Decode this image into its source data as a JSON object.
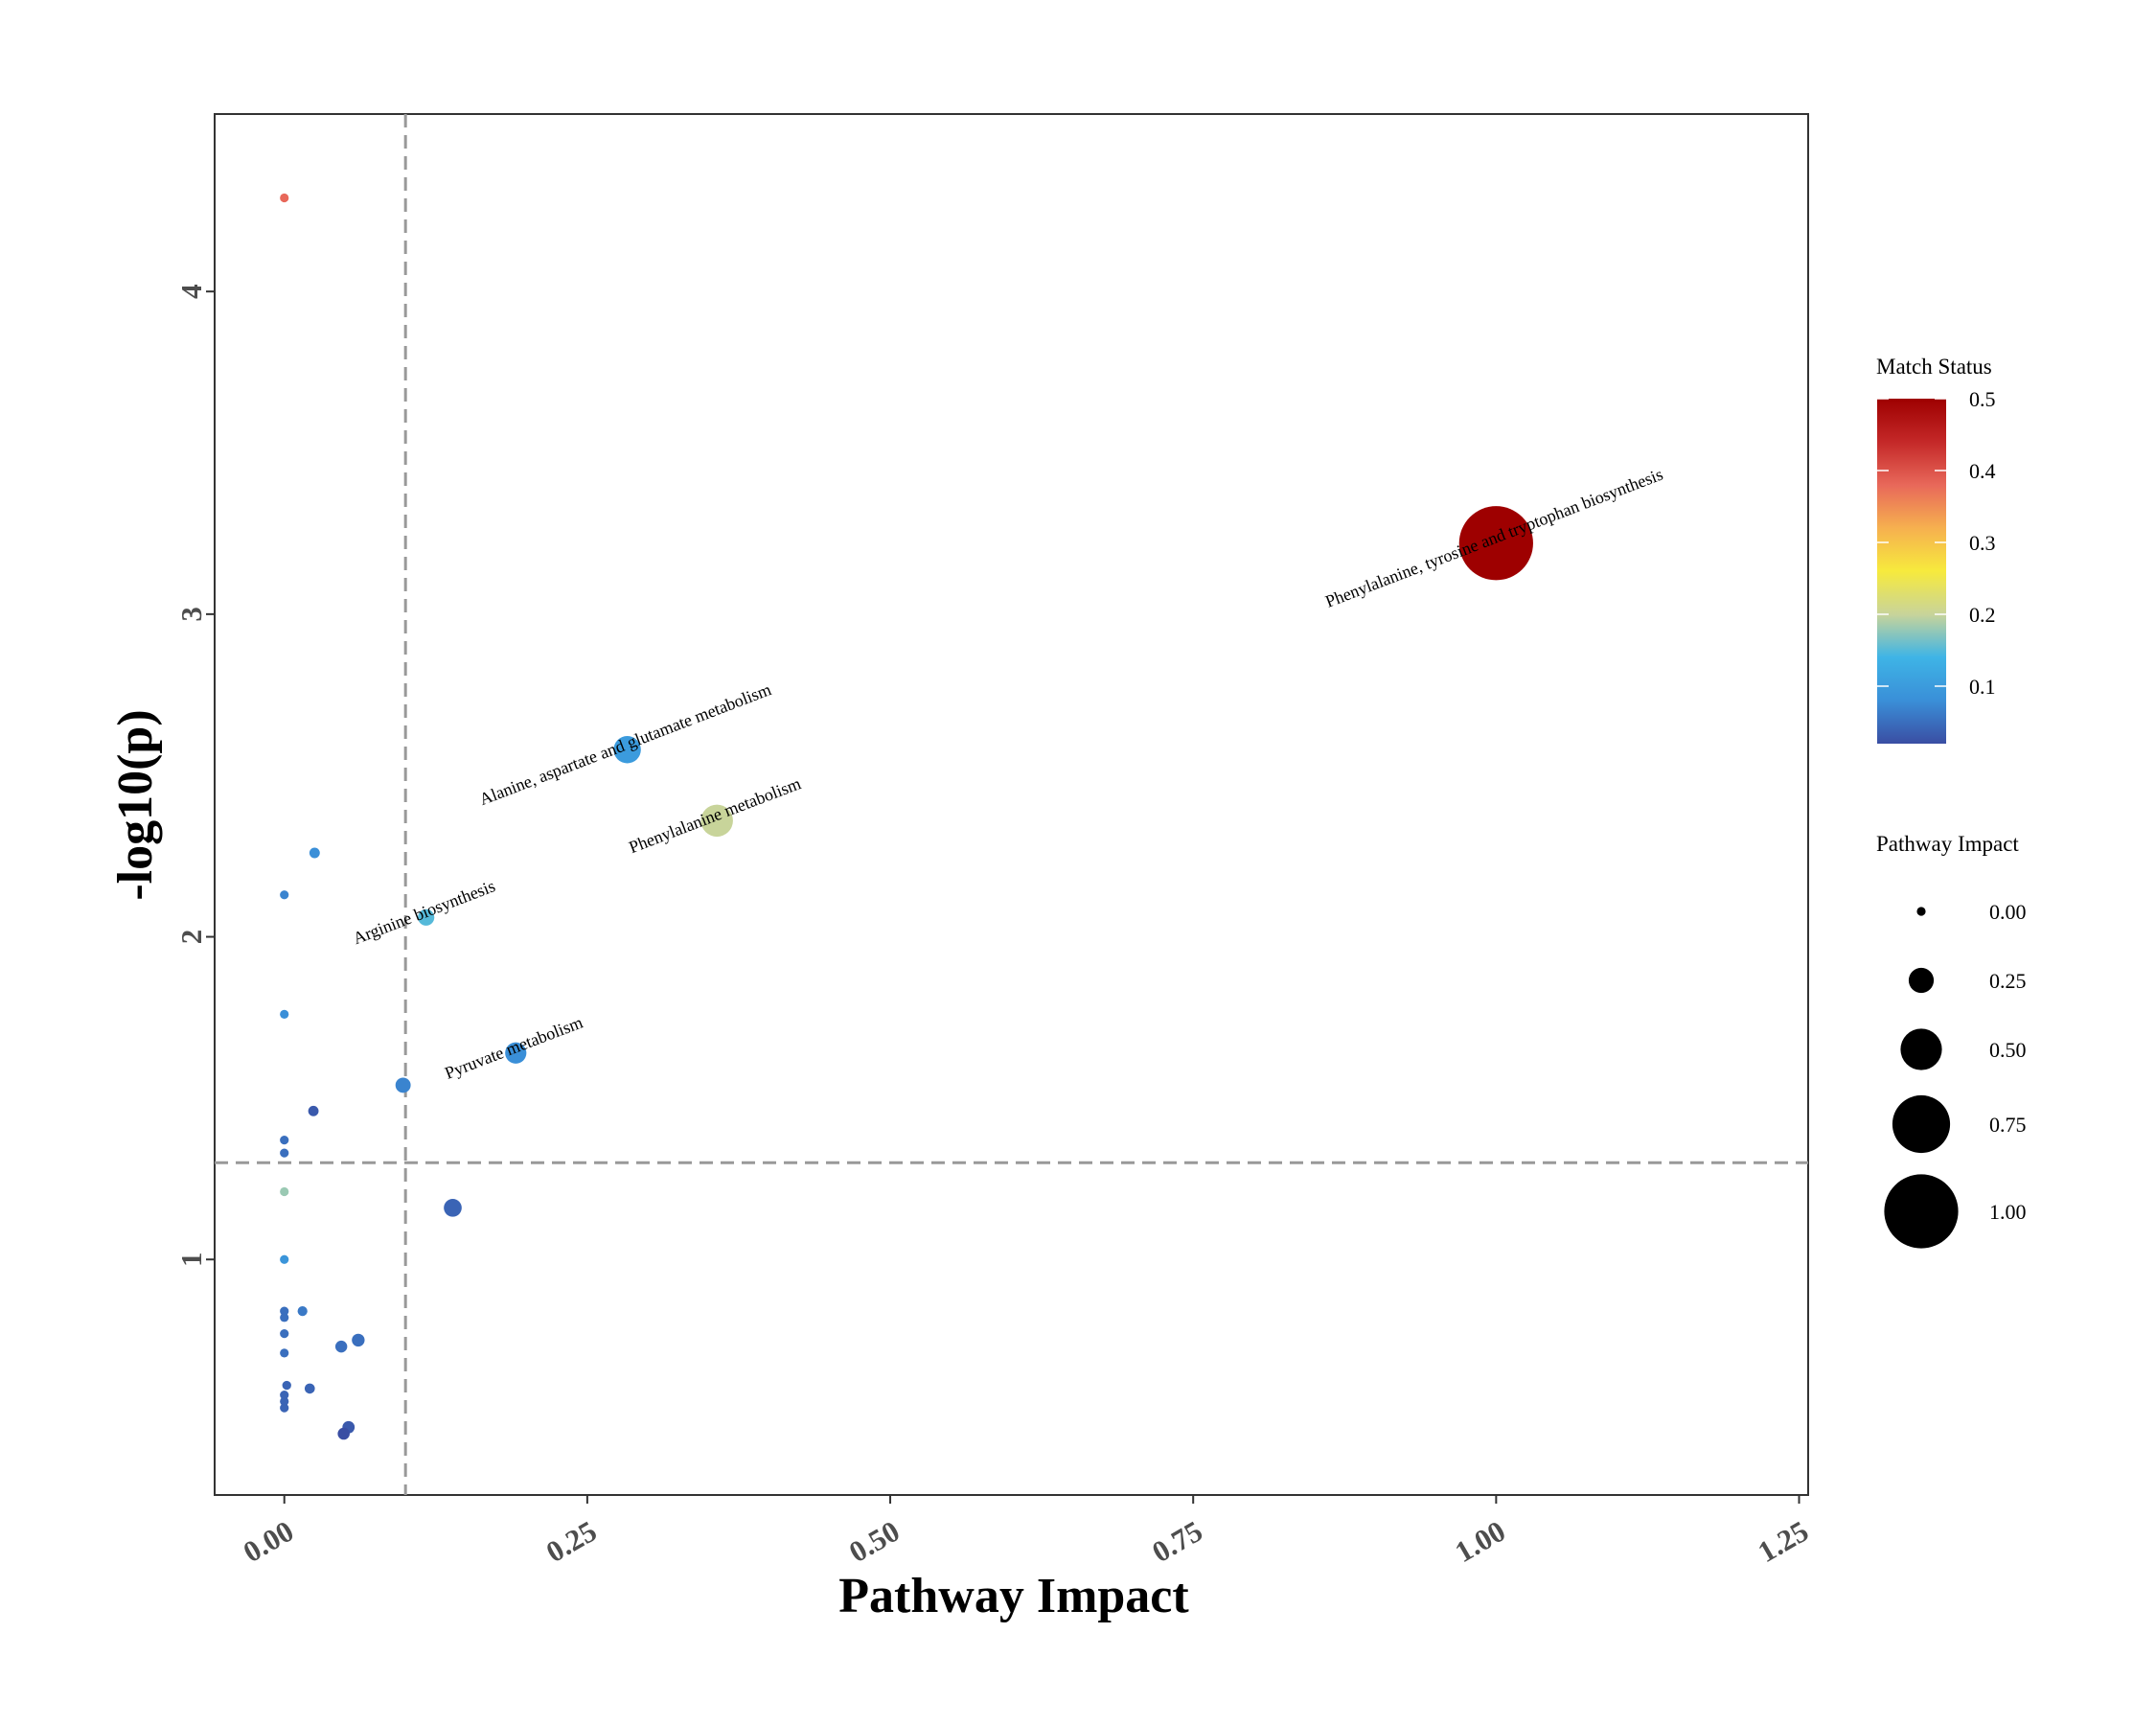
{
  "chart_data": {
    "type": "scatter",
    "xlabel": "Pathway Impact",
    "ylabel": "-log10(p)",
    "xlim": [
      -0.0575,
      1.2575
    ],
    "ylim": [
      0.27,
      4.55
    ],
    "x_ticks": [
      0.0,
      0.25,
      0.5,
      0.75,
      1.0,
      1.25
    ],
    "x_tick_labels": [
      "0.00",
      "0.25",
      "0.50",
      "0.75",
      "1.00",
      "1.25"
    ],
    "y_ticks": [
      1,
      2,
      3,
      4
    ],
    "y_tick_labels": [
      "1",
      "2",
      "3",
      "4"
    ],
    "grid": false,
    "threshold_lines": {
      "x": 0.1,
      "y": 1.3
    },
    "points": [
      {
        "x": 0.0,
        "y": 4.29,
        "impact": 0.0,
        "match": 0.38
      },
      {
        "x": 1.0,
        "y": 3.22,
        "impact": 1.0,
        "match": 0.5,
        "label": "Phenylalanine, tyrosine and tryptophan biosynthesis"
      },
      {
        "x": 0.283,
        "y": 2.58,
        "impact": 0.283,
        "match": 0.1,
        "label": "Alanine, aspartate and glutamate metabolism"
      },
      {
        "x": 0.357,
        "y": 2.36,
        "impact": 0.357,
        "match": 0.2,
        "label": "Phenylalanine metabolism"
      },
      {
        "x": 0.025,
        "y": 2.26,
        "impact": 0.025,
        "match": 0.08
      },
      {
        "x": 0.0,
        "y": 2.13,
        "impact": 0.0,
        "match": 0.07
      },
      {
        "x": 0.117,
        "y": 2.06,
        "impact": 0.117,
        "match": 0.15,
        "label": "Arginine biosynthesis"
      },
      {
        "x": 0.0,
        "y": 1.76,
        "impact": 0.0,
        "match": 0.08
      },
      {
        "x": 0.191,
        "y": 1.64,
        "impact": 0.191,
        "match": 0.08,
        "label": "Pyruvate metabolism"
      },
      {
        "x": 0.098,
        "y": 1.54,
        "impact": 0.098,
        "match": 0.07
      },
      {
        "x": 0.024,
        "y": 1.46,
        "impact": 0.024,
        "match": 0.03
      },
      {
        "x": 0.0,
        "y": 1.37,
        "impact": 0.0,
        "match": 0.05
      },
      {
        "x": 0.0,
        "y": 1.33,
        "impact": 0.0,
        "match": 0.05
      },
      {
        "x": 0.0,
        "y": 1.21,
        "impact": 0.0,
        "match": 0.18
      },
      {
        "x": 0.139,
        "y": 1.16,
        "impact": 0.139,
        "match": 0.04
      },
      {
        "x": 0.0,
        "y": 1.0,
        "impact": 0.0,
        "match": 0.09
      },
      {
        "x": 0.0,
        "y": 0.84,
        "impact": 0.0,
        "match": 0.05
      },
      {
        "x": 0.015,
        "y": 0.84,
        "impact": 0.015,
        "match": 0.06
      },
      {
        "x": 0.0,
        "y": 0.82,
        "impact": 0.0,
        "match": 0.05
      },
      {
        "x": 0.0,
        "y": 0.77,
        "impact": 0.0,
        "match": 0.05
      },
      {
        "x": 0.061,
        "y": 0.75,
        "impact": 0.061,
        "match": 0.05
      },
      {
        "x": 0.047,
        "y": 0.73,
        "impact": 0.047,
        "match": 0.05
      },
      {
        "x": 0.0,
        "y": 0.71,
        "impact": 0.0,
        "match": 0.05
      },
      {
        "x": 0.002,
        "y": 0.61,
        "impact": 0.002,
        "match": 0.04
      },
      {
        "x": 0.021,
        "y": 0.6,
        "impact": 0.021,
        "match": 0.04
      },
      {
        "x": 0.0,
        "y": 0.58,
        "impact": 0.0,
        "match": 0.04
      },
      {
        "x": 0.0,
        "y": 0.56,
        "impact": 0.0,
        "match": 0.04
      },
      {
        "x": 0.0,
        "y": 0.54,
        "impact": 0.0,
        "match": 0.04
      },
      {
        "x": 0.053,
        "y": 0.48,
        "impact": 0.053,
        "match": 0.03
      },
      {
        "x": 0.049,
        "y": 0.46,
        "impact": 0.049,
        "match": 0.02
      }
    ],
    "color_legend": {
      "title": "Match Status",
      "ticks": [
        0.1,
        0.2,
        0.3,
        0.4,
        0.5
      ],
      "tick_labels": [
        "0.1",
        "0.2",
        "0.3",
        "0.4",
        "0.5"
      ],
      "range": [
        0.02,
        0.5
      ],
      "colors": [
        "#3a4ea3",
        "#3a8fd8",
        "#3eb4e6",
        "#c8d49a",
        "#f7ea3d",
        "#f6b04f",
        "#e8685a",
        "#c42828",
        "#9e0000"
      ]
    },
    "size_legend": {
      "title": "Pathway Impact",
      "values": [
        0.0,
        0.25,
        0.5,
        0.75,
        1.0
      ],
      "labels": [
        "0.00",
        "0.25",
        "0.50",
        "0.75",
        "1.00"
      ]
    }
  }
}
